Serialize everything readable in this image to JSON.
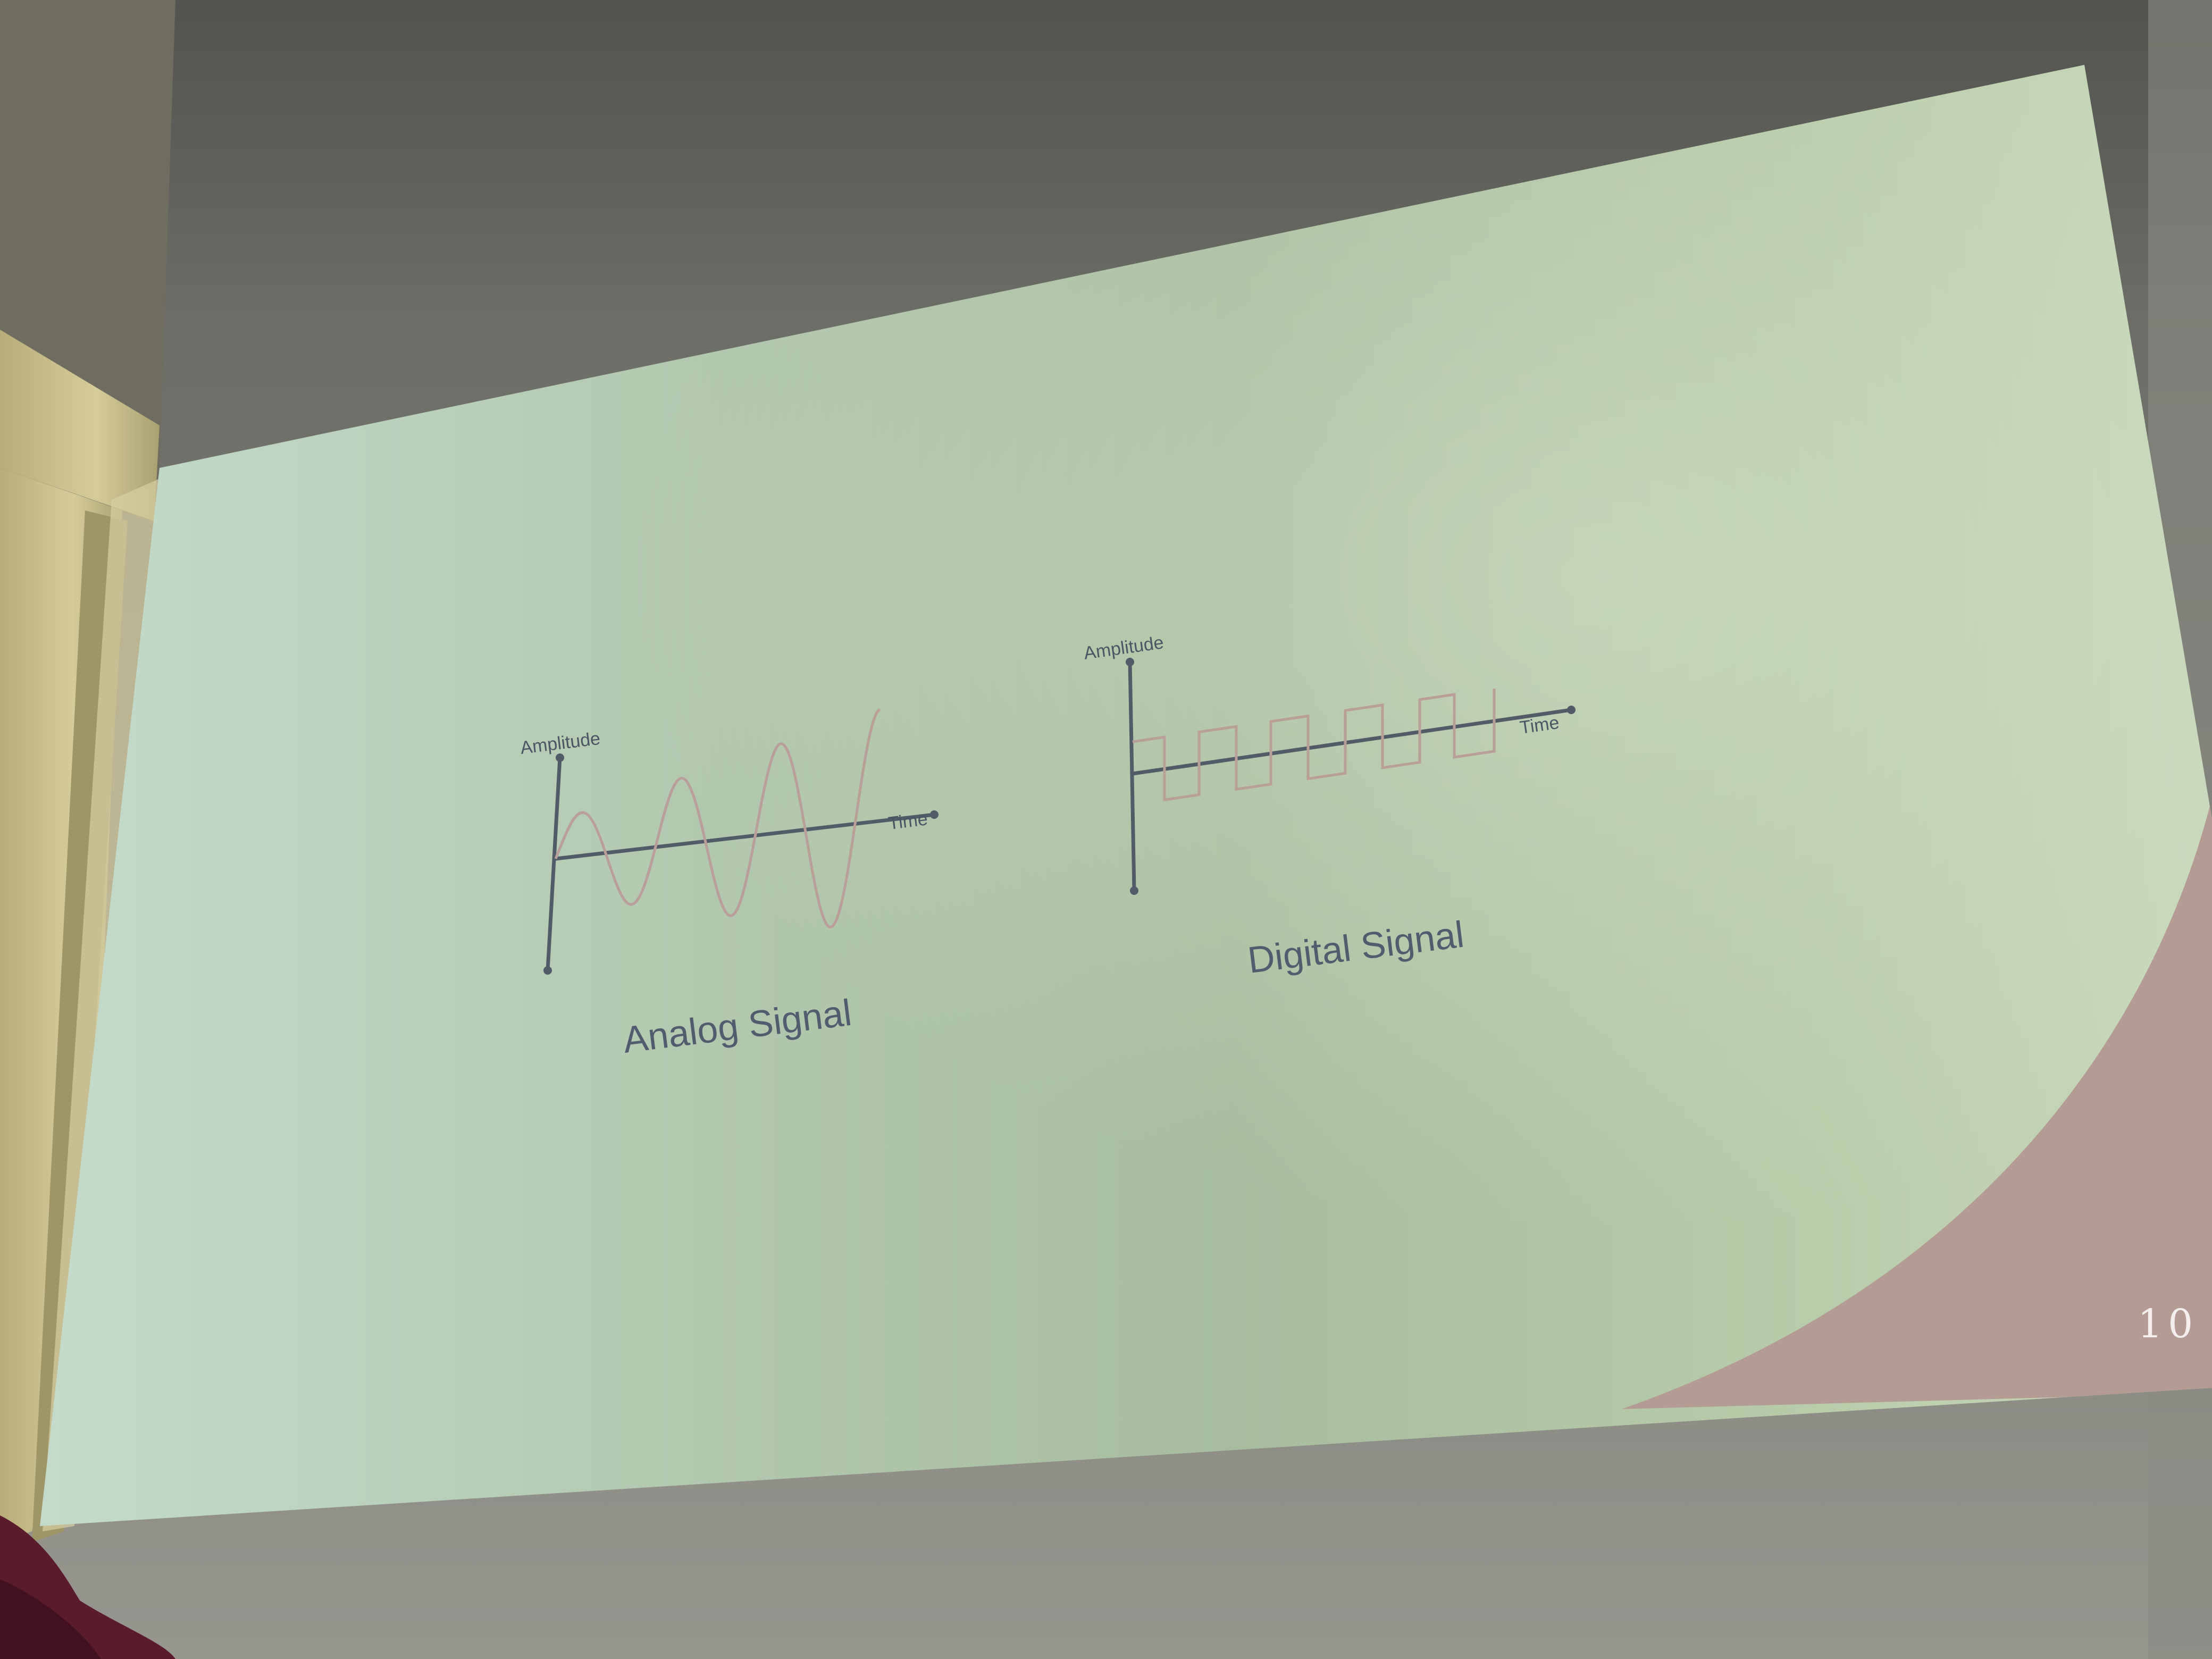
{
  "slide": {
    "page_number": "10",
    "analog": {
      "y_axis_label": "Amplitude",
      "x_axis_label": "Time",
      "caption": "Analog Signal"
    },
    "digital": {
      "y_axis_label": "Amplitude",
      "x_axis_label": "Time",
      "caption": "Digital Signal"
    }
  },
  "colors": {
    "wall_top": "#696965",
    "wall_bottom": "#8f8f88",
    "screen_left": "#c7ddd0",
    "screen_mid": "#aabe9f",
    "screen_right": "#c8d8ba",
    "corner_accent": "#b39a93",
    "axis": "#525c68",
    "signal": "#b99f98",
    "door_frame": "#c9c090",
    "curtain": "#5a1b2c"
  }
}
